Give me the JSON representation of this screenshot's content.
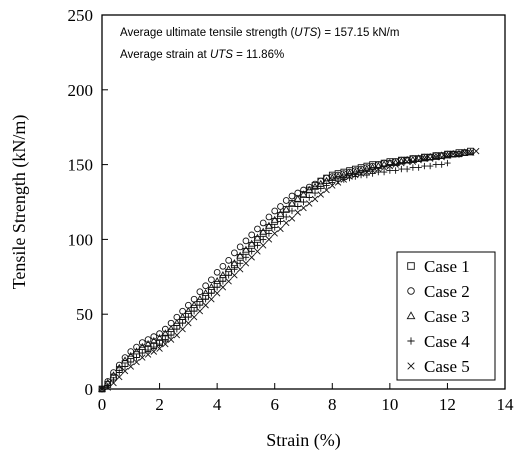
{
  "chart_data": {
    "type": "scatter",
    "xlabel": "Strain (%)",
    "ylabel": "Tensile Strength (kN/m)",
    "xlim": [
      0,
      14
    ],
    "ylim": [
      0,
      250
    ],
    "xticks": [
      0,
      2,
      4,
      6,
      8,
      10,
      12,
      14
    ],
    "yticks": [
      0,
      50,
      100,
      150,
      200,
      250
    ],
    "grid": false,
    "legend_position": "bottom-right",
    "annotations": {
      "line1_prefix": "Average ultimate tensile strength (",
      "line1_em": "UTS",
      "line1_suffix": ") = 157.15 kN/m",
      "line2_prefix": "Average strain at ",
      "line2_em": "UTS",
      "line2_suffix": " = 11.86%"
    },
    "series": [
      {
        "name": "Case 1",
        "marker": "square",
        "x": [
          0,
          0.2,
          0.4,
          0.6,
          0.8,
          1.0,
          1.2,
          1.4,
          1.6,
          1.8,
          2.0,
          2.2,
          2.4,
          2.6,
          2.8,
          3.0,
          3.2,
          3.4,
          3.6,
          3.8,
          4.0,
          4.2,
          4.4,
          4.6,
          4.8,
          5.0,
          5.2,
          5.4,
          5.6,
          5.8,
          6.0,
          6.2,
          6.4,
          6.6,
          6.8,
          7.0,
          7.2,
          7.4,
          7.6,
          7.8,
          8.0,
          8.2,
          8.4,
          8.6,
          8.8,
          9.0,
          9.2,
          9.4,
          9.6,
          9.8,
          10.0,
          10.2,
          10.4,
          10.6,
          10.8,
          11.0,
          11.2,
          11.4,
          11.6,
          11.8,
          12.0,
          12.2,
          12.4,
          12.6,
          12.8
        ],
        "y": [
          0,
          3,
          8,
          13,
          17,
          20,
          23,
          26,
          27,
          29,
          31,
          34,
          38,
          42,
          46,
          50,
          54,
          58,
          62,
          66,
          70,
          74,
          78,
          83,
          88,
          92,
          96,
          100,
          104,
          108,
          112,
          116,
          120,
          124,
          127,
          130,
          133,
          136,
          139,
          141,
          143,
          144,
          145,
          146,
          147,
          148,
          149,
          150,
          150,
          151,
          152,
          152,
          153,
          153,
          154,
          154,
          155,
          155,
          156,
          156,
          157,
          157,
          158,
          158,
          159
        ]
      },
      {
        "name": "Case 2",
        "marker": "circle",
        "x": [
          0,
          0.2,
          0.4,
          0.6,
          0.8,
          1.0,
          1.2,
          1.4,
          1.6,
          1.8,
          2.0,
          2.2,
          2.4,
          2.6,
          2.8,
          3.0,
          3.2,
          3.4,
          3.6,
          3.8,
          4.0,
          4.2,
          4.4,
          4.6,
          4.8,
          5.0,
          5.2,
          5.4,
          5.6,
          5.8,
          6.0,
          6.2,
          6.4,
          6.6,
          6.8,
          7.0,
          7.2,
          7.4,
          7.6,
          7.8,
          8.0,
          8.2,
          8.4,
          8.6,
          8.8,
          9.0,
          9.2,
          9.4,
          9.6,
          9.8,
          10.0,
          10.2,
          10.4,
          10.6,
          10.8,
          11.0,
          11.2,
          11.4,
          11.6,
          11.8,
          12.0,
          12.2,
          12.4,
          12.6
        ],
        "y": [
          0,
          5,
          11,
          16,
          21,
          25,
          28,
          31,
          33,
          35,
          37,
          40,
          44,
          48,
          52,
          56,
          60,
          65,
          69,
          73,
          78,
          82,
          86,
          91,
          95,
          99,
          103,
          107,
          111,
          115,
          119,
          122,
          126,
          129,
          131,
          133,
          135,
          137,
          139,
          141,
          142,
          143,
          144,
          145,
          146,
          147,
          148,
          149,
          150,
          151,
          151,
          152,
          153,
          153,
          154,
          154,
          155,
          155,
          156,
          156,
          157,
          157,
          157,
          158
        ]
      },
      {
        "name": "Case 3",
        "marker": "triangle",
        "x": [
          0,
          0.2,
          0.4,
          0.6,
          0.8,
          1.0,
          1.2,
          1.4,
          1.6,
          1.8,
          2.0,
          2.2,
          2.4,
          2.6,
          2.8,
          3.0,
          3.2,
          3.4,
          3.6,
          3.8,
          4.0,
          4.2,
          4.4,
          4.6,
          4.8,
          5.0,
          5.2,
          5.4,
          5.6,
          5.8,
          6.0,
          6.2,
          6.4,
          6.6,
          6.8,
          7.0,
          7.2,
          7.4,
          7.6,
          7.8,
          8.0,
          8.2,
          8.4,
          8.6,
          8.8,
          9.0,
          9.2,
          9.4,
          9.6,
          9.8,
          10.0,
          10.2,
          10.4,
          10.6,
          10.8,
          11.0,
          11.2,
          11.4,
          11.6,
          11.8,
          12.0,
          12.2,
          12.4,
          12.6,
          12.8
        ],
        "y": [
          0,
          4,
          9,
          14,
          19,
          22,
          25,
          28,
          30,
          32,
          34,
          37,
          40,
          44,
          48,
          52,
          56,
          60,
          64,
          68,
          72,
          76,
          80,
          84,
          89,
          93,
          97,
          101,
          105,
          109,
          113,
          117,
          120,
          124,
          127,
          130,
          133,
          135,
          137,
          139,
          141,
          142,
          143,
          144,
          145,
          146,
          147,
          148,
          149,
          150,
          151,
          151,
          152,
          153,
          153,
          154,
          154,
          155,
          155,
          156,
          156,
          157,
          157,
          158,
          158
        ]
      },
      {
        "name": "Case 4",
        "marker": "plus",
        "x": [
          0,
          0.2,
          0.4,
          0.6,
          0.8,
          1.0,
          1.2,
          1.4,
          1.6,
          1.8,
          2.0,
          2.2,
          2.4,
          2.6,
          2.8,
          3.0,
          3.2,
          3.4,
          3.6,
          3.8,
          4.0,
          4.2,
          4.4,
          4.6,
          4.8,
          5.0,
          5.2,
          5.4,
          5.6,
          5.8,
          6.0,
          6.2,
          6.4,
          6.6,
          6.8,
          7.0,
          7.2,
          7.4,
          7.6,
          7.8,
          8.0,
          8.2,
          8.4,
          8.6,
          8.8,
          9.0,
          9.2,
          9.4,
          9.6,
          9.8,
          10.0,
          10.2,
          10.4,
          10.6,
          10.8,
          11.0,
          11.2,
          11.4,
          11.6,
          11.8,
          12.0
        ],
        "y": [
          0,
          2,
          6,
          11,
          15,
          18,
          21,
          24,
          26,
          28,
          30,
          33,
          36,
          40,
          44,
          48,
          52,
          56,
          60,
          64,
          68,
          72,
          76,
          80,
          84,
          88,
          92,
          96,
          100,
          104,
          108,
          112,
          115,
          119,
          122,
          125,
          128,
          131,
          134,
          136,
          138,
          139,
          140,
          141,
          142,
          143,
          143,
          144,
          145,
          145,
          146,
          146,
          147,
          147,
          148,
          148,
          149,
          149,
          150,
          150,
          151
        ]
      },
      {
        "name": "Case 5",
        "marker": "x",
        "x": [
          0,
          0.2,
          0.4,
          0.6,
          0.8,
          1.0,
          1.2,
          1.4,
          1.6,
          1.8,
          2.0,
          2.2,
          2.4,
          2.6,
          2.8,
          3.0,
          3.2,
          3.4,
          3.6,
          3.8,
          4.0,
          4.2,
          4.4,
          4.6,
          4.8,
          5.0,
          5.2,
          5.4,
          5.6,
          5.8,
          6.0,
          6.2,
          6.4,
          6.6,
          6.8,
          7.0,
          7.2,
          7.4,
          7.6,
          7.8,
          8.0,
          8.2,
          8.4,
          8.6,
          8.8,
          9.0,
          9.2,
          9.4,
          9.6,
          9.8,
          10.0,
          10.2,
          10.4,
          10.6,
          10.8,
          11.0,
          11.2,
          11.4,
          11.6,
          11.8,
          12.0,
          12.2,
          12.4,
          12.6,
          12.8,
          13.0
        ],
        "y": [
          0,
          1,
          4,
          8,
          12,
          15,
          18,
          21,
          23,
          25,
          27,
          30,
          33,
          36,
          40,
          44,
          48,
          52,
          56,
          60,
          64,
          68,
          72,
          76,
          80,
          84,
          88,
          92,
          96,
          100,
          104,
          107,
          111,
          114,
          118,
          121,
          124,
          127,
          130,
          133,
          136,
          138,
          140,
          142,
          143,
          144,
          145,
          146,
          147,
          148,
          149,
          150,
          151,
          152,
          152,
          153,
          154,
          154,
          155,
          155,
          156,
          157,
          157,
          158,
          158,
          159
        ]
      }
    ]
  }
}
